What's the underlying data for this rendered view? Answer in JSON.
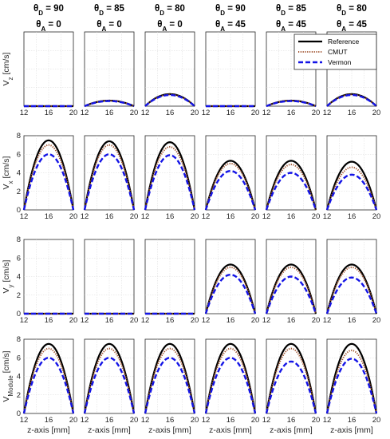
{
  "chart_data": {
    "type": "line",
    "x_unit_label": "z-axis [mm]",
    "xlim": [
      12,
      20
    ],
    "xticks": [
      "12",
      "16",
      "20"
    ],
    "column_headers": [
      {
        "theta_d": "θD = 90",
        "theta_a": "θA = 0"
      },
      {
        "theta_d": "θD = 85",
        "theta_a": "θA = 0"
      },
      {
        "theta_d": "θD = 80",
        "theta_a": "θA = 0"
      },
      {
        "theta_d": "θD = 90",
        "theta_a": "θA = 45"
      },
      {
        "theta_d": "θD = 85",
        "theta_a": "θA = 45"
      },
      {
        "theta_d": "θD = 80",
        "theta_a": "θA = 45"
      }
    ],
    "legend": {
      "placement": "top-right panel",
      "entries": [
        {
          "name": "Reference",
          "color": "#000000",
          "style": "solid"
        },
        {
          "name": "CMUT",
          "color": "#a0522d",
          "style": "dotted"
        },
        {
          "name": "Vermon",
          "color": "#1414e6",
          "style": "dashed"
        }
      ]
    },
    "rows": [
      {
        "ylabel": "Vz [cm/s]",
        "ylim": [
          0,
          8
        ],
        "yticks": [],
        "peaks": {
          "Reference": [
            0,
            0.6,
            1.3,
            0,
            0.6,
            1.3
          ],
          "CMUT": [
            0,
            0.6,
            1.25,
            0,
            0.6,
            1.25
          ],
          "Vermon": [
            0,
            0.55,
            1.2,
            0,
            0.55,
            1.2
          ]
        }
      },
      {
        "ylabel": "Vx [cm/s]",
        "ylim": [
          0,
          8
        ],
        "yticks": [
          "0",
          "2",
          "4",
          "6",
          "8"
        ],
        "peaks": {
          "Reference": [
            7.5,
            7.4,
            7.3,
            5.3,
            5.3,
            5.2
          ],
          "CMUT": [
            7.0,
            7.0,
            6.8,
            5.0,
            4.9,
            4.6
          ],
          "Vermon": [
            6.0,
            6.0,
            5.9,
            4.2,
            4.0,
            3.8
          ]
        }
      },
      {
        "ylabel": "Vy [cm/s]",
        "ylim": [
          0,
          8
        ],
        "yticks": [
          "0",
          "2",
          "4",
          "6",
          "8"
        ],
        "peaks": {
          "Reference": [
            0,
            0,
            0,
            5.3,
            5.3,
            5.3
          ],
          "CMUT": [
            0,
            0,
            0,
            5.0,
            5.0,
            5.0
          ],
          "Vermon": [
            0,
            0,
            0,
            4.2,
            4.0,
            3.9
          ]
        }
      },
      {
        "ylabel": "VModule [cm/s]",
        "ylim": [
          0,
          8
        ],
        "yticks": [
          "0",
          "2",
          "4",
          "6",
          "8"
        ],
        "peaks": {
          "Reference": [
            7.5,
            7.5,
            7.5,
            7.5,
            7.5,
            7.5
          ],
          "CMUT": [
            7.0,
            7.0,
            7.0,
            7.0,
            7.0,
            6.8
          ],
          "Vermon": [
            6.0,
            6.0,
            6.0,
            6.0,
            5.6,
            5.9
          ]
        }
      }
    ]
  }
}
